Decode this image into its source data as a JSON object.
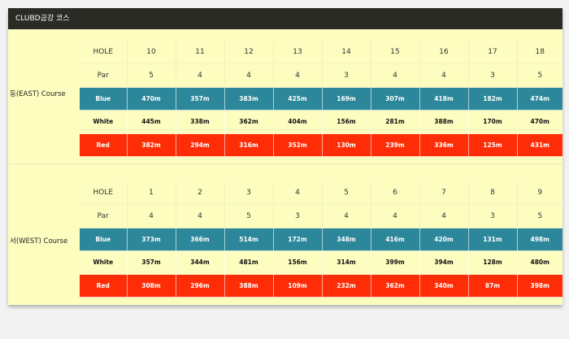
{
  "header": {
    "title": "CLUBD금강 코스"
  },
  "labels": {
    "hole": "HOLE",
    "par": "Par",
    "blue": "Blue",
    "white": "White",
    "red": "Red"
  },
  "east": {
    "name": "동(EAST) Course",
    "holes": [
      "10",
      "11",
      "12",
      "13",
      "14",
      "15",
      "16",
      "17",
      "18"
    ],
    "par": [
      "5",
      "4",
      "4",
      "4",
      "3",
      "4",
      "4",
      "3",
      "5"
    ],
    "blue": [
      "470m",
      "357m",
      "383m",
      "425m",
      "169m",
      "307m",
      "418m",
      "182m",
      "474m"
    ],
    "white": [
      "445m",
      "338m",
      "362m",
      "404m",
      "156m",
      "281m",
      "388m",
      "170m",
      "470m"
    ],
    "red": [
      "382m",
      "294m",
      "316m",
      "352m",
      "130m",
      "239m",
      "336m",
      "125m",
      "431m"
    ]
  },
  "west": {
    "name": "서(WEST) Course",
    "holes": [
      "1",
      "2",
      "3",
      "4",
      "5",
      "6",
      "7",
      "8",
      "9"
    ],
    "par": [
      "4",
      "4",
      "5",
      "3",
      "4",
      "4",
      "4",
      "3",
      "5"
    ],
    "blue": [
      "373m",
      "366m",
      "514m",
      "172m",
      "348m",
      "416m",
      "420m",
      "131m",
      "498m"
    ],
    "white": [
      "357m",
      "344m",
      "481m",
      "156m",
      "314m",
      "399m",
      "394m",
      "128m",
      "480m"
    ],
    "red": [
      "308m",
      "296m",
      "388m",
      "109m",
      "232m",
      "362m",
      "340m",
      "87m",
      "398m"
    ]
  },
  "colors": {
    "header_bg": "#2b2b25",
    "panel_bg": "#fefdc0",
    "blue_tee": "#2d879a",
    "red_tee": "#ff2d07"
  }
}
